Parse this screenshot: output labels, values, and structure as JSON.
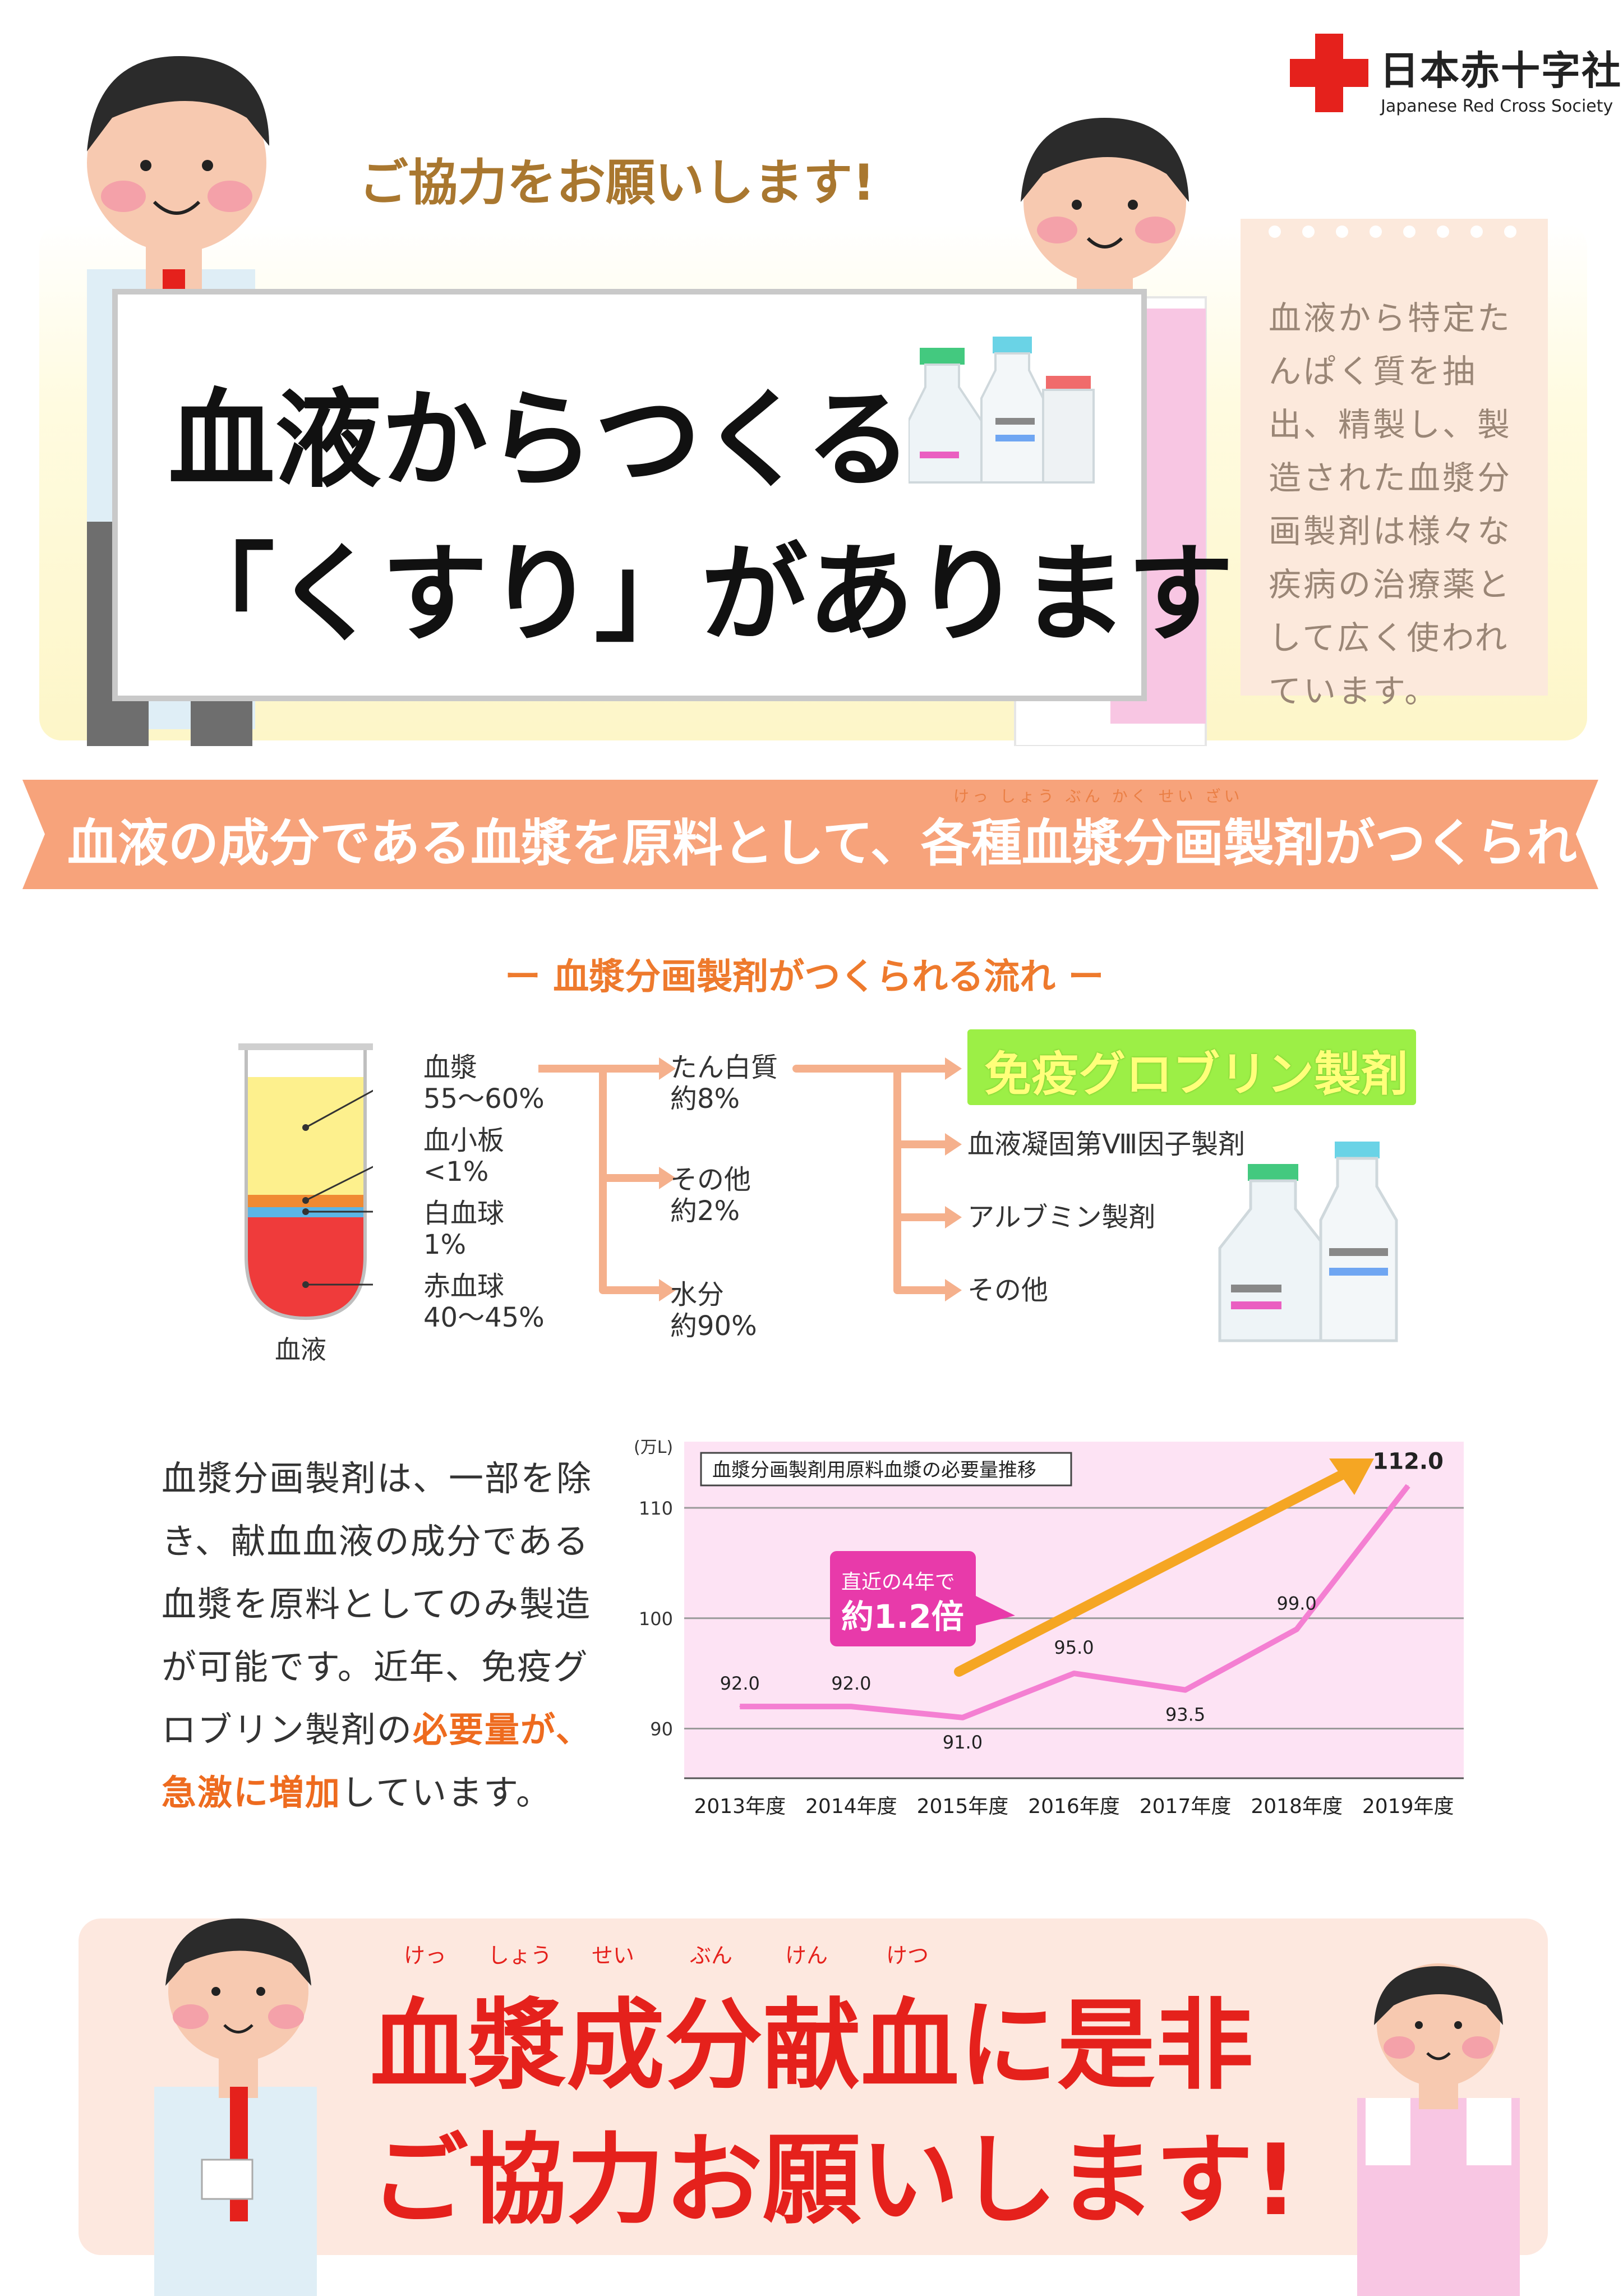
{
  "logo": {
    "jp": "日本赤十字社",
    "en": "Japanese Red Cross Society",
    "color": "#e5211c"
  },
  "hero": {
    "tagline": "ご協力をお願いします!",
    "line1": "血液からつくる",
    "line2": "「くすり」があります"
  },
  "memo": {
    "text": "血液から特定たんぱく質を抽出、精製し、製造された血漿分画製剤は様々な疾病の治療薬として広く使われています。"
  },
  "banner": {
    "ruby": "けっ しょう ぶん かく せい ざい",
    "text": "血液の成分である血漿を原料として、各種血漿分画製剤がつくられます",
    "color": "#f7a37b"
  },
  "flow": {
    "title": "ー 血漿分画製剤がつくられる流れ ー",
    "tube_caption": "血液",
    "components": [
      {
        "name": "血漿",
        "share": "55〜60%"
      },
      {
        "name": "血小板",
        "share": "<1%"
      },
      {
        "name": "白血球",
        "share": "1%"
      },
      {
        "name": "赤血球",
        "share": "40〜45%"
      }
    ],
    "plasma_parts": [
      {
        "name": "たん白質",
        "share": "約8%"
      },
      {
        "name": "その他",
        "share": "約2%"
      },
      {
        "name": "水分",
        "share": "約90%"
      }
    ],
    "products": [
      {
        "name": "免疫グロブリン製剤"
      },
      {
        "name": "血液凝固第Ⅷ因子製剤"
      },
      {
        "name": "アルブミン製剤"
      },
      {
        "name": "その他"
      }
    ],
    "arrow_color": "#f5b08c"
  },
  "paragraph": {
    "part1": "血漿分画製剤は、一部を除き、献血血液の成分である血漿を原料としてのみ製造が可能です。近年、免疫グロブリン製剤の",
    "highlight1": "必要量が、急激に増加",
    "part2": "しています。"
  },
  "chart_data": {
    "type": "line",
    "title": "血漿分画製剤用原料血漿の必要量推移",
    "ylabel": "(万L)",
    "xlabel": "",
    "categories": [
      "2013年度",
      "2014年度",
      "2015年度",
      "2016年度",
      "2017年度",
      "2018年度",
      "2019年度"
    ],
    "values": [
      92.0,
      92.0,
      91.0,
      95.0,
      93.5,
      99.0,
      112.0
    ],
    "value_labels": [
      "92.0",
      "92.0",
      "91.0",
      "95.0",
      "93.5",
      "99.0",
      "112.0"
    ],
    "yticks": [
      "90",
      "100",
      "110"
    ],
    "ylim": [
      85.5,
      116
    ],
    "callout_line1": "直近の4年で",
    "callout_line2": "約1.2倍",
    "grid": true,
    "background": "#fde3f4",
    "line_color": "#f47fd2",
    "arrow_color": "#f5a623",
    "callout_color": "#e83aaa"
  },
  "bottom": {
    "ruby": [
      "けっ",
      "しょう",
      "せい",
      "ぶん",
      "けん",
      "けつ"
    ],
    "line1": "血漿成分献血に是非",
    "line2": "ご協力お願いします!"
  }
}
